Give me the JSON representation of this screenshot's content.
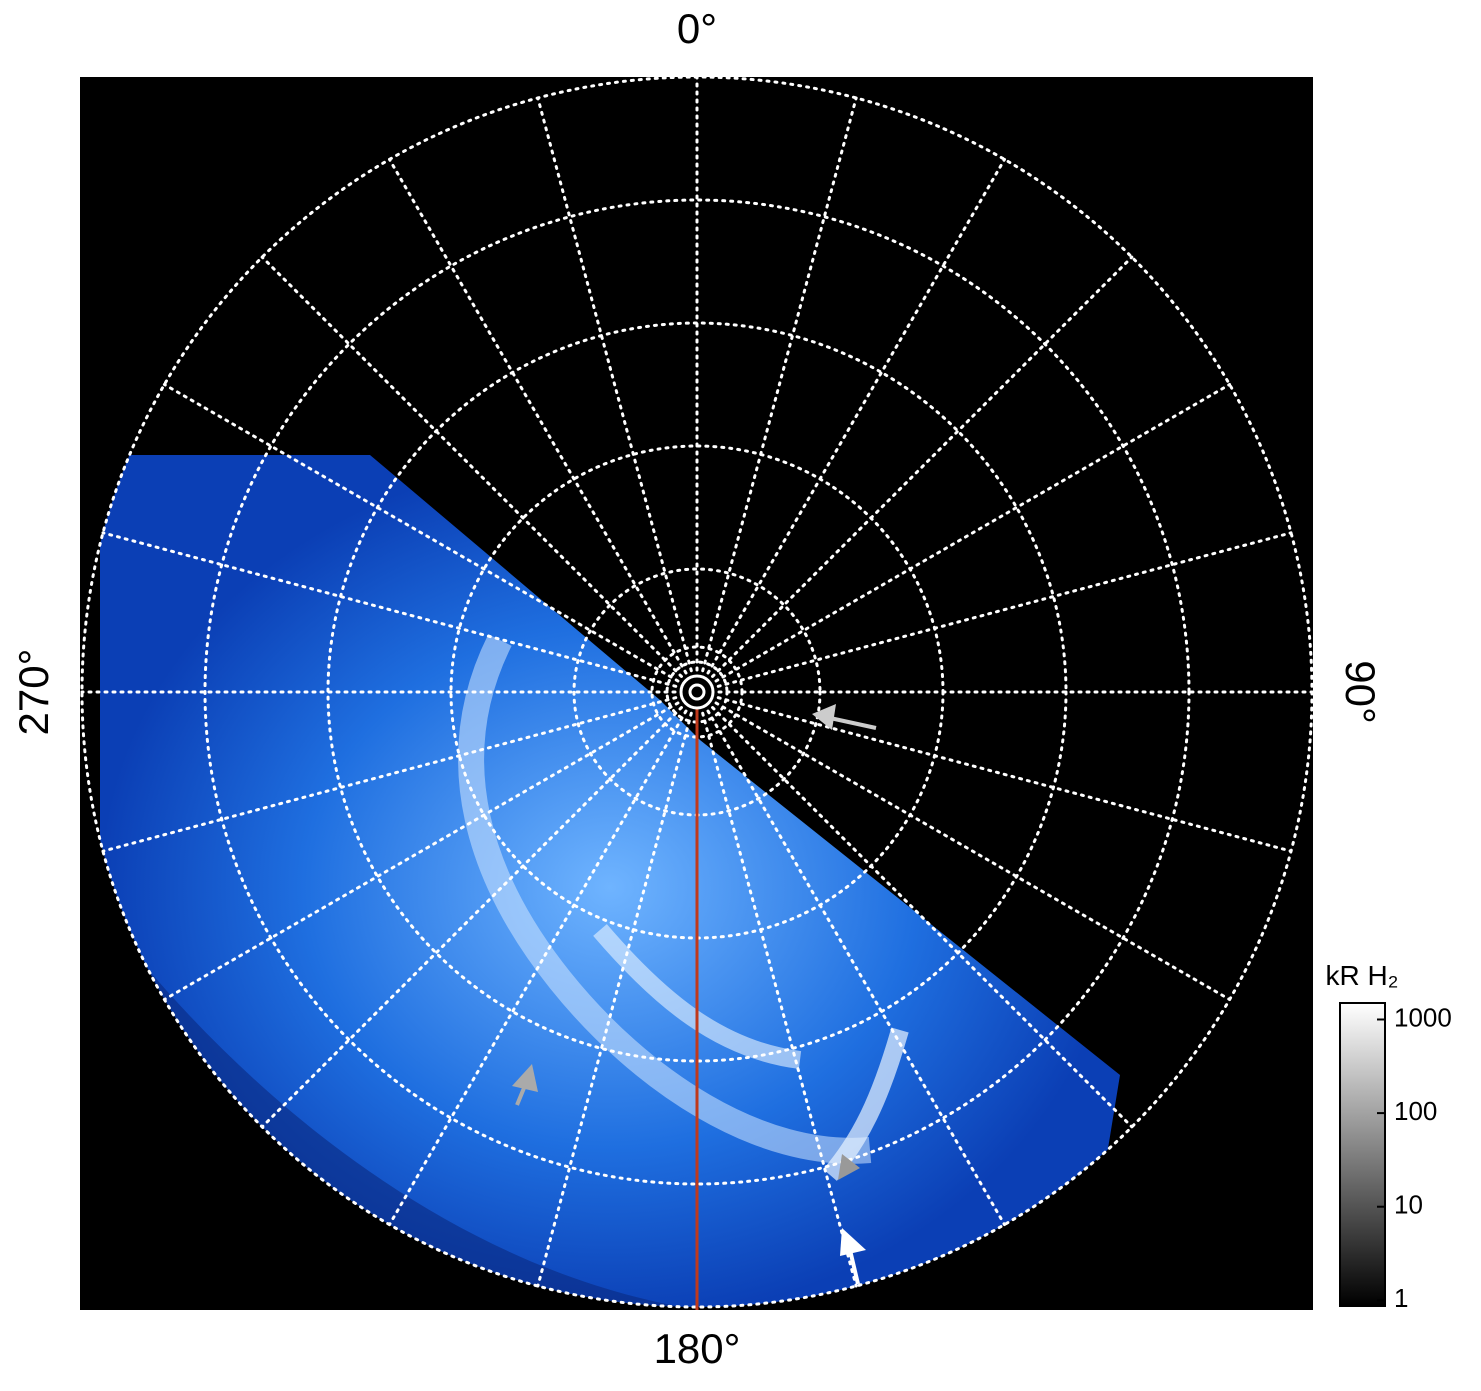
{
  "chart_data": {
    "type": "polar-image",
    "angle_ticks": [
      {
        "value": 0,
        "label": "0°"
      },
      {
        "value": 90,
        "label": "90°"
      },
      {
        "value": 180,
        "label": "180°"
      },
      {
        "value": 270,
        "label": "270°"
      }
    ],
    "colorbar": {
      "label": "kR H₂",
      "log_scale": true,
      "clim": [
        0.87,
        1500
      ],
      "ticks": [
        1,
        10,
        100,
        1000
      ],
      "colors": [
        "#000000",
        "#ffffff"
      ]
    },
    "emission_color": "#1f6fe0",
    "meridian_color": "#c0391b"
  }
}
